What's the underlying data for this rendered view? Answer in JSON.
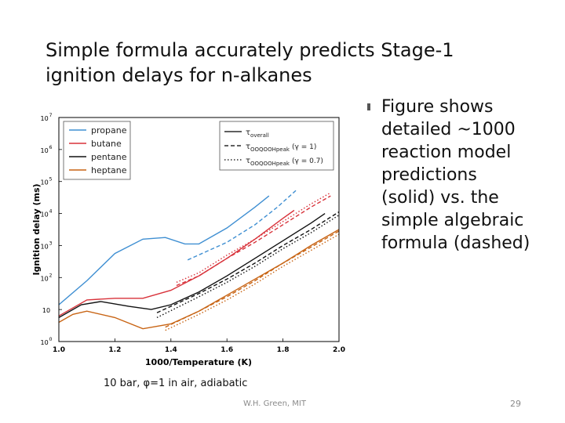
{
  "slide": {
    "title": "Simple formula accurately predicts Stage-1 ignition delays for n-alkanes",
    "bullet": "Figure shows detailed ~1000 reaction model predictions (solid) vs. the simple algebraic formula (dashed)",
    "caption": "10 bar, φ=1 in air, adiabatic",
    "credit": "W.H. Green, MIT",
    "page_number": "29"
  },
  "chart_data": {
    "type": "line",
    "title": "",
    "xlabel": "1000/Temperature (K)",
    "ylabel": "Ignition delay (ms)",
    "xlim": [
      1.0,
      2.0
    ],
    "ylim_log10": [
      0,
      7
    ],
    "yscale": "log",
    "grid": false,
    "xticks": [
      "1.0",
      "1.2",
      "1.4",
      "1.6",
      "1.8",
      "2.0"
    ],
    "yticks": [
      {
        "base": "10",
        "exp": "0"
      },
      {
        "base": "10",
        "exp": ""
      },
      {
        "base": "10",
        "exp": "2"
      },
      {
        "base": "10",
        "exp": "3"
      },
      {
        "base": "10",
        "exp": "4"
      },
      {
        "base": "10",
        "exp": "5"
      },
      {
        "base": "10",
        "exp": "6"
      },
      {
        "base": "10",
        "exp": "7"
      }
    ],
    "legend_species": {
      "placement": "top-left",
      "entries": [
        {
          "name": "propane",
          "color": "#3f8fd2"
        },
        {
          "name": "butane",
          "color": "#d8323a"
        },
        {
          "name": "pentane",
          "color": "#111111"
        },
        {
          "name": "heptane",
          "color": "#c86414"
        }
      ]
    },
    "legend_styles": {
      "placement": "top-right",
      "entries": [
        {
          "style": "solid",
          "label_main": "τ",
          "label_sub": "overall",
          "label_suffix": ""
        },
        {
          "style": "dashed",
          "label_main": "τ",
          "label_sub": "OOQOOHpeak",
          "label_suffix": "(γ = 1)"
        },
        {
          "style": "dashdot",
          "label_main": "τ",
          "label_sub": "OOQOOHpeak",
          "label_suffix": "(γ = 0.7)"
        }
      ]
    },
    "series": [
      {
        "name": "propane",
        "style": "solid",
        "color": "#3f8fd2",
        "x": [
          1.0,
          1.1,
          1.2,
          1.3,
          1.38,
          1.45,
          1.5,
          1.6,
          1.7,
          1.75
        ],
        "log10_y": [
          1.15,
          1.9,
          2.75,
          3.2,
          3.25,
          3.05,
          3.05,
          3.55,
          4.2,
          4.55
        ]
      },
      {
        "name": "propane",
        "style": "dashed",
        "color": "#3f8fd2",
        "x": [
          1.46,
          1.6,
          1.7,
          1.78,
          1.85
        ],
        "log10_y": [
          2.55,
          3.1,
          3.65,
          4.2,
          4.75
        ]
      },
      {
        "name": "butane",
        "style": "solid",
        "color": "#d8323a",
        "x": [
          1.0,
          1.1,
          1.2,
          1.3,
          1.4,
          1.5,
          1.6,
          1.7,
          1.8,
          1.84
        ],
        "log10_y": [
          0.8,
          1.3,
          1.35,
          1.35,
          1.6,
          2.05,
          2.6,
          3.2,
          3.85,
          4.1
        ]
      },
      {
        "name": "butane",
        "style": "dashed",
        "color": "#d8323a",
        "x": [
          1.42,
          1.5,
          1.6,
          1.7,
          1.8,
          1.9,
          1.97
        ],
        "log10_y": [
          1.75,
          2.05,
          2.6,
          3.1,
          3.65,
          4.2,
          4.55
        ]
      },
      {
        "name": "butane",
        "style": "dashdot",
        "color": "#d8323a",
        "x": [
          1.42,
          1.5,
          1.6,
          1.7,
          1.8,
          1.9,
          1.97
        ],
        "log10_y": [
          1.85,
          2.15,
          2.7,
          3.2,
          3.75,
          4.3,
          4.65
        ]
      },
      {
        "name": "pentane",
        "style": "solid",
        "color": "#111111",
        "x": [
          1.0,
          1.08,
          1.15,
          1.25,
          1.33,
          1.4,
          1.5,
          1.6,
          1.7,
          1.8,
          1.9,
          1.95
        ],
        "log10_y": [
          0.75,
          1.15,
          1.25,
          1.1,
          1.0,
          1.15,
          1.55,
          2.05,
          2.6,
          3.15,
          3.7,
          4.0
        ]
      },
      {
        "name": "pentane",
        "style": "dashed",
        "color": "#111111",
        "x": [
          1.35,
          1.5,
          1.6,
          1.7,
          1.8,
          1.9,
          2.0
        ],
        "log10_y": [
          0.9,
          1.5,
          1.95,
          2.45,
          3.0,
          3.5,
          4.05
        ]
      },
      {
        "name": "pentane",
        "style": "dashdot",
        "color": "#111111",
        "x": [
          1.35,
          1.5,
          1.6,
          1.7,
          1.8,
          1.9,
          2.0
        ],
        "log10_y": [
          0.75,
          1.4,
          1.85,
          2.35,
          2.9,
          3.4,
          3.95
        ]
      },
      {
        "name": "heptane",
        "style": "solid",
        "color": "#c86414",
        "x": [
          1.0,
          1.05,
          1.1,
          1.2,
          1.3,
          1.4,
          1.5,
          1.6,
          1.7,
          1.8,
          1.9,
          2.0
        ],
        "log10_y": [
          0.6,
          0.85,
          0.95,
          0.75,
          0.4,
          0.55,
          0.95,
          1.45,
          1.95,
          2.45,
          3.0,
          3.5
        ]
      },
      {
        "name": "heptane",
        "style": "dashed",
        "color": "#c86414",
        "x": [
          1.38,
          1.5,
          1.6,
          1.7,
          1.8,
          1.9,
          2.0
        ],
        "log10_y": [
          0.45,
          0.95,
          1.4,
          1.9,
          2.45,
          2.95,
          3.45
        ]
      },
      {
        "name": "heptane",
        "style": "dashdot",
        "color": "#c86414",
        "x": [
          1.38,
          1.5,
          1.6,
          1.7,
          1.8,
          1.9,
          2.0
        ],
        "log10_y": [
          0.35,
          0.85,
          1.3,
          1.8,
          2.35,
          2.85,
          3.35
        ]
      }
    ]
  }
}
